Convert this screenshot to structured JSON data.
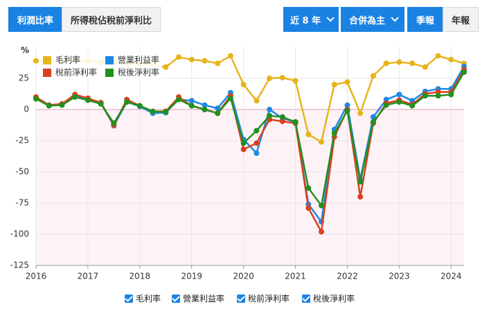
{
  "tabs": [
    "利潤比率",
    "所得稅佔稅前淨利比"
  ],
  "filters": [
    "近 8 年",
    "合併為主"
  ],
  "periods": [
    "季報",
    "年報"
  ],
  "chart_data": {
    "type": "line",
    "y_unit": "%",
    "x": [
      2016,
      2016.25,
      2016.5,
      2016.75,
      2017,
      2017.25,
      2017.5,
      2017.75,
      2018,
      2018.25,
      2018.5,
      2018.75,
      2019,
      2019.25,
      2019.5,
      2019.75,
      2020,
      2020.25,
      2020.5,
      2020.75,
      2021,
      2021.25,
      2021.5,
      2021.75,
      2022,
      2022.25,
      2022.5,
      2022.75,
      2023,
      2023.25,
      2023.5,
      2023.75,
      2024,
      2024.25
    ],
    "xlim": [
      2016,
      2024.25
    ],
    "xticks": [
      2016,
      2017,
      2018,
      2019,
      2020,
      2021,
      2022,
      2023,
      2024
    ],
    "ylim": [
      -125,
      50
    ],
    "yticks": [
      -125,
      -100,
      -75,
      -50,
      -25,
      0,
      25
    ],
    "grid": true,
    "series": [
      {
        "name": "毛利率",
        "color": "#e6b41c",
        "values": [
          39,
          39,
          38,
          40,
          39,
          38,
          38,
          37,
          37,
          36,
          34,
          42,
          40,
          39,
          37,
          43,
          20,
          7,
          25,
          25.5,
          23,
          -20,
          -26,
          20,
          22,
          -3,
          27,
          37,
          38,
          37,
          34,
          43,
          40,
          37
        ]
      },
      {
        "name": "營業利益率",
        "color": "#1e88e5",
        "values": [
          9,
          3.5,
          4,
          10.5,
          8,
          5,
          -13,
          6,
          2.5,
          -3,
          -2.5,
          8,
          7,
          3.5,
          1,
          13.5,
          -24,
          -35,
          0,
          -7,
          -10,
          -76,
          -90,
          -16,
          3.5,
          -56,
          -6,
          8,
          12,
          7,
          14.5,
          16.5,
          16.5,
          34.5
        ]
      },
      {
        "name": "稅前淨利率",
        "color": "#d9411e",
        "values": [
          10,
          3.5,
          4.5,
          12,
          9,
          5.5,
          -12.5,
          8,
          3,
          -1.5,
          -1.5,
          10,
          3,
          0,
          -3,
          11,
          -32,
          -27,
          -8,
          -9.5,
          -11,
          -79,
          -98,
          -22,
          0,
          -70,
          -11,
          5,
          7.5,
          4,
          12.5,
          14,
          14,
          32
        ]
      },
      {
        "name": "稅後淨利率",
        "color": "#22911f",
        "values": [
          8.5,
          3,
          3.5,
          10,
          7.5,
          4.5,
          -11,
          6,
          3,
          -1.5,
          -2,
          8,
          3,
          0,
          -3,
          9,
          -27,
          -17,
          -5,
          -6,
          -10,
          -63,
          -77,
          -19,
          -1,
          -58,
          -10,
          3.5,
          6,
          3,
          11,
          11,
          12,
          30
        ]
      }
    ]
  }
}
